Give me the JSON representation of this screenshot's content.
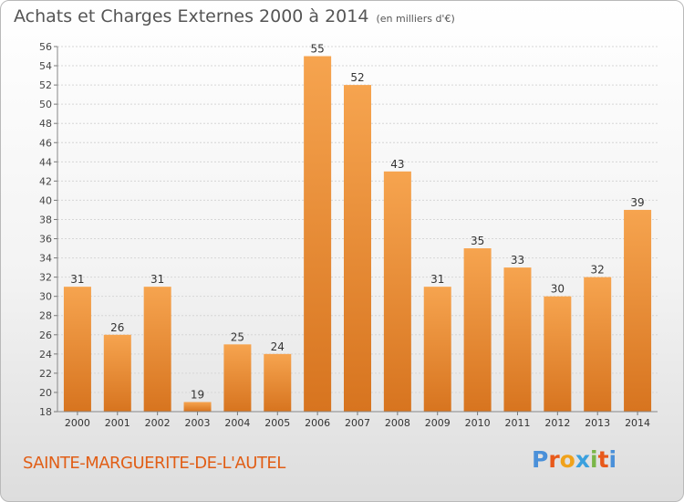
{
  "header": {
    "title": "Achats et Charges Externes 2000 à 2014",
    "unit": "(en milliers d'€)"
  },
  "footer": {
    "commune": "SAINTE-MARGUERITE-DE-L'AUTEL",
    "brand": "Proxiti",
    "brand_colors": [
      "#4a90d9",
      "#e8591a",
      "#f0a21b",
      "#3aa0de",
      "#7ab648",
      "#e8591a",
      "#4a90d9"
    ]
  },
  "colors": {
    "bar_light": "#f6a44f",
    "bar_dark": "#d7741f",
    "commune_text": "#e15e16"
  },
  "chart_data": {
    "type": "bar",
    "categories": [
      "2000",
      "2001",
      "2002",
      "2003",
      "2004",
      "2005",
      "2006",
      "2007",
      "2008",
      "2009",
      "2010",
      "2011",
      "2012",
      "2013",
      "2014"
    ],
    "values": [
      31,
      26,
      31,
      19,
      25,
      24,
      55,
      52,
      43,
      31,
      35,
      33,
      30,
      32,
      39
    ],
    "ylim": [
      18,
      56
    ],
    "yticks": [
      18,
      20,
      22,
      24,
      26,
      28,
      30,
      32,
      34,
      36,
      38,
      40,
      42,
      44,
      46,
      48,
      50,
      52,
      54,
      56
    ],
    "grid": true,
    "data_labels": true
  }
}
